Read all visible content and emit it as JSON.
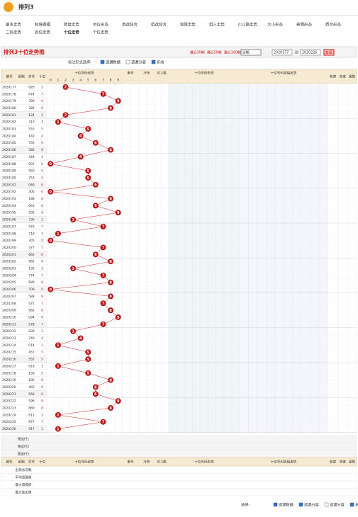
{
  "header": {
    "title": "排列3"
  },
  "nav": [
    "基本走势",
    "和值振幅",
    "跨度走势",
    "百位形态",
    "直选综合",
    "组选综合",
    "和尾走势",
    "组三走势",
    "012路走势",
    "大小形态",
    "奇偶形态",
    "质合形态",
    "二码走势",
    "百位走势",
    "十位走势",
    "个位走势"
  ],
  "page_title": "排列3十位走势图",
  "controls": {
    "recent": [
      "最近30期",
      "最近50期",
      "最近100期"
    ],
    "select": "近期",
    "from": "2020177",
    "to_label": "到",
    "to": "2020226",
    "button": "查看"
  },
  "options": {
    "label": "标注形式选择:",
    "items": [
      {
        "text": "遗漏数据",
        "checked": true
      },
      {
        "text": "遗漏分层",
        "checked": false
      },
      {
        "text": "折线",
        "checked": true
      }
    ]
  },
  "table": {
    "columns": [
      "期号",
      "星期",
      "奖号",
      "十位"
    ],
    "trend_title": "十位号码走势",
    "digits": [
      0,
      1,
      2,
      3,
      4,
      5,
      6,
      7,
      8,
      9
    ],
    "sections": [
      "重号",
      "冷热",
      "012路",
      "十位号码形态",
      "十位号码振幅走势",
      "和值",
      "跨度",
      "尾数"
    ],
    "rows": [
      {
        "period": "2020177",
        "draw": "826",
        "tens": 2
      },
      {
        "period": "2020178",
        "draw": "474",
        "tens": 7
      },
      {
        "period": "2020179",
        "draw": "396",
        "tens": 9
      },
      {
        "period": "2020180",
        "draw": "385",
        "tens": 8
      },
      {
        "period": "2020181",
        "draw": "124",
        "tens": 2
      },
      {
        "period": "2020182",
        "draw": "313",
        "tens": 1
      },
      {
        "period": "2020183",
        "draw": "553",
        "tens": 5
      },
      {
        "period": "2020184",
        "draw": "140",
        "tens": 4
      },
      {
        "period": "2020185",
        "draw": "765",
        "tens": 6
      },
      {
        "period": "2020186",
        "draw": "582",
        "tens": 8
      },
      {
        "period": "2020187",
        "draw": "444",
        "tens": 4
      },
      {
        "period": "2020188",
        "draw": "007",
        "tens": 0
      },
      {
        "period": "2020189",
        "draw": "950",
        "tens": 5
      },
      {
        "period": "2020190",
        "draw": "753",
        "tens": 5
      },
      {
        "period": "2020191",
        "draw": "069",
        "tens": 6
      },
      {
        "period": "2020192",
        "draw": "306",
        "tens": 0
      },
      {
        "period": "2020193",
        "draw": "188",
        "tens": 8
      },
      {
        "period": "2020194",
        "draw": "663",
        "tens": 6
      },
      {
        "period": "2020195",
        "draw": "595",
        "tens": 9
      },
      {
        "period": "2020196",
        "draw": "736",
        "tens": 3
      },
      {
        "period": "2020197",
        "draw": "473",
        "tens": 7
      },
      {
        "period": "2020198",
        "draw": "719",
        "tens": 1
      },
      {
        "period": "2020199",
        "draw": "305",
        "tens": 0
      },
      {
        "period": "2020200",
        "draw": "377",
        "tens": 7
      },
      {
        "period": "2020201",
        "draw": "662",
        "tens": 6
      },
      {
        "period": "2020202",
        "draw": "981",
        "tens": 8
      },
      {
        "period": "2020203",
        "draw": "135",
        "tens": 3
      },
      {
        "period": "2020204",
        "draw": "774",
        "tens": 7
      },
      {
        "period": "2020205",
        "draw": "686",
        "tens": 8
      },
      {
        "period": "2020206",
        "draw": "709",
        "tens": 0
      },
      {
        "period": "2020207",
        "draw": "588",
        "tens": 8
      },
      {
        "period": "2020208",
        "draw": "471",
        "tens": 7
      },
      {
        "period": "2020209",
        "draw": "982",
        "tens": 8
      },
      {
        "period": "2020210",
        "draw": "094",
        "tens": 9
      },
      {
        "period": "2020211",
        "draw": "578",
        "tens": 7
      },
      {
        "period": "2020212",
        "draw": "839",
        "tens": 3
      },
      {
        "period": "2020213",
        "draw": "740",
        "tens": 4
      },
      {
        "period": "2020214",
        "draw": "014",
        "tens": 1
      },
      {
        "period": "2020215",
        "draw": "457",
        "tens": 5
      },
      {
        "period": "2020216",
        "draw": "553",
        "tens": 5
      },
      {
        "period": "2020217",
        "draw": "019",
        "tens": 1
      },
      {
        "period": "2020218",
        "draw": "159",
        "tens": 5
      },
      {
        "period": "2020219",
        "draw": "180",
        "tens": 8
      },
      {
        "period": "2020220",
        "draw": "460",
        "tens": 6
      },
      {
        "period": "2020221",
        "draw": "568",
        "tens": 6
      },
      {
        "period": "2020222",
        "draw": "596",
        "tens": 9
      },
      {
        "period": "2020223",
        "draw": "889",
        "tens": 8
      },
      {
        "period": "2020224",
        "draw": "612",
        "tens": 1
      },
      {
        "period": "2020225",
        "draw": "877",
        "tens": 7
      },
      {
        "period": "2020226",
        "draw": "917",
        "tens": 1
      }
    ],
    "stat_rows": [
      "预选行1",
      "预选行2",
      "预选行3",
      "出现总次数",
      "平均遗漏值",
      "最大遗漏值",
      "最大连出值"
    ]
  },
  "footer": {
    "label": "选择:",
    "items": [
      {
        "text": "遗漏数据",
        "checked": true
      },
      {
        "text": "遗漏分层",
        "checked": true
      },
      {
        "text": "遗漏分层",
        "checked": false
      },
      {
        "text": "折线",
        "checked": true
      }
    ]
  }
}
